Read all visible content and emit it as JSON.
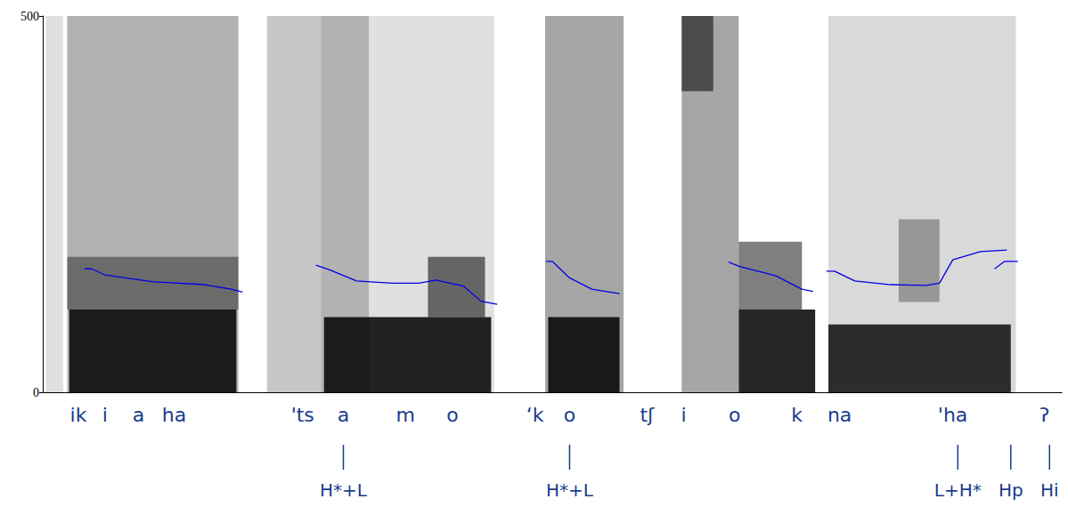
{
  "chart_data": {
    "type": "line",
    "color": "#0000e6",
    "xlim": [
      0,
      100
    ],
    "ylim": [
      0,
      500
    ],
    "yticks": [
      0,
      500
    ],
    "tick_labels": "y",
    "x": [
      4.1,
      4.8,
      6.1,
      10.7,
      15.9,
      18.5,
      19.6,
      23.0,
      26.8,
      28.1,
      30.8,
      34.3,
      36.9,
      38.6,
      41.3,
      43.0,
      44.6,
      47.0,
      49.4,
      50.0,
      51.7,
      53.9,
      56.6,
      62.0,
      67.3,
      68.4,
      71.9,
      74.5,
      75.6,
      76.3,
      76.9,
      77.7,
      79.7,
      83.2,
      86.7,
      88.0,
      89.3,
      92.0,
      94.6,
      94.8,
      93.4,
      94.4,
      95.7
    ],
    "values": [
      164,
      164,
      156,
      147,
      143,
      137,
      133,
      null,
      169,
      163,
      148,
      145,
      145,
      149,
      141,
      121,
      117,
      null,
      174,
      174,
      152,
      137,
      131,
      null,
      173,
      167,
      155,
      137,
      134,
      null,
      161,
      161,
      148,
      143,
      142,
      145,
      176,
      187,
      189,
      null,
      164,
      174,
      174
    ],
    "spectrogram": [
      [
        0.3,
        2.0,
        0,
        500,
        0.12
      ],
      [
        2.4,
        19.2,
        0,
        500,
        0.3
      ],
      [
        2.4,
        19.2,
        110,
        180,
        0.4
      ],
      [
        2.6,
        19.0,
        0,
        110,
        0.85
      ],
      [
        22.0,
        27.3,
        0,
        500,
        0.22
      ],
      [
        27.3,
        32.0,
        0,
        500,
        0.3
      ],
      [
        32.0,
        44.3,
        0,
        500,
        0.12
      ],
      [
        27.6,
        44.0,
        0,
        100,
        0.85
      ],
      [
        37.8,
        43.4,
        100,
        180,
        0.55
      ],
      [
        49.3,
        57.0,
        0,
        500,
        0.35
      ],
      [
        49.6,
        56.6,
        0,
        100,
        0.85
      ],
      [
        62.7,
        68.3,
        0,
        500,
        0.35
      ],
      [
        62.7,
        65.8,
        400,
        500,
        0.55
      ],
      [
        68.3,
        75.8,
        0,
        110,
        0.85
      ],
      [
        68.3,
        74.5,
        110,
        200,
        0.5
      ],
      [
        77.1,
        95.5,
        0,
        500,
        0.15
      ],
      [
        77.1,
        95.0,
        0,
        90,
        0.8
      ],
      [
        84.0,
        88.0,
        120,
        230,
        0.3
      ]
    ],
    "annotations": [
      {
        "text": "ik",
        "x": 3.5
      },
      {
        "text": "i",
        "x": 6.1
      },
      {
        "text": "a",
        "x": 9.4
      },
      {
        "text": "ha",
        "x": 12.9
      },
      {
        "text": "'ts",
        "x": 25.5
      },
      {
        "text": "a",
        "x": 29.5
      },
      {
        "text": "m",
        "x": 35.6
      },
      {
        "text": "o",
        "x": 40.2
      },
      {
        "text": "‘k",
        "x": 48.3
      },
      {
        "text": "o",
        "x": 51.7
      },
      {
        "text": "tʃ",
        "x": 59.3
      },
      {
        "text": "i",
        "x": 62.9
      },
      {
        "text": "o",
        "x": 67.9
      },
      {
        "text": "k",
        "x": 74.0
      },
      {
        "text": "na",
        "x": 78.2
      },
      {
        "text": "'ha",
        "x": 89.3
      },
      {
        "text": "ʔ",
        "x": 98.3
      }
    ],
    "tone_labels": [
      {
        "text": "H*+L",
        "x": 29.5
      },
      {
        "text": "H*+L",
        "x": 51.7
      },
      {
        "text": "L+H*",
        "x": 89.8
      },
      {
        "text": "Hp",
        "x": 95.0
      },
      {
        "text": "Hi",
        "x": 98.8
      }
    ]
  }
}
